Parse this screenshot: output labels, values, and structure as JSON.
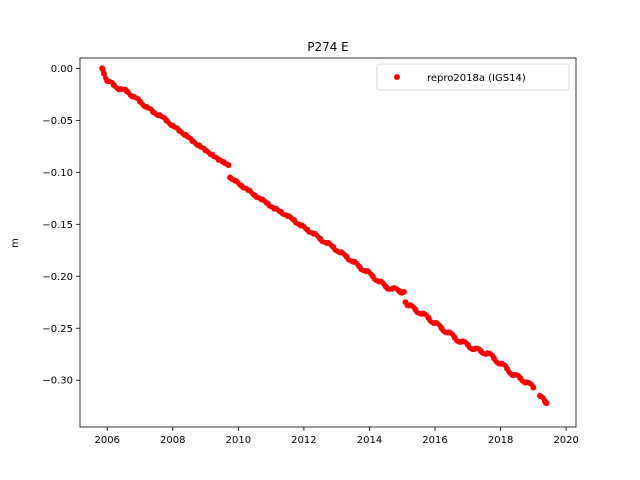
{
  "chart_data": {
    "type": "scatter",
    "title": "P274 E",
    "xlabel": "",
    "ylabel": "m",
    "xlim": [
      2005.17,
      2020.3
    ],
    "ylim": [
      -0.345,
      0.01
    ],
    "x_ticks": [
      2006,
      2008,
      2010,
      2012,
      2014,
      2016,
      2018,
      2020
    ],
    "x_tick_labels": [
      "2006",
      "2008",
      "2010",
      "2012",
      "2014",
      "2016",
      "2018",
      "2020"
    ],
    "y_ticks": [
      0.0,
      -0.05,
      -0.1,
      -0.15,
      -0.2,
      -0.25,
      -0.3
    ],
    "y_tick_labels": [
      "0.00",
      "−0.05",
      "−0.10",
      "−0.15",
      "−0.20",
      "−0.25",
      "−0.30"
    ],
    "grid": false,
    "legend_position": "top-right",
    "series": [
      {
        "name": "repro2018a (IGS14)",
        "color": "#ff0000",
        "marker": "dot",
        "x": [
          2005.85,
          2005.9,
          2006.0,
          2006.2,
          2006.4,
          2006.6,
          2006.8,
          2007.0,
          2007.2,
          2007.4,
          2007.6,
          2007.8,
          2008.0,
          2008.2,
          2008.4,
          2008.6,
          2008.8,
          2009.0,
          2009.2,
          2009.4,
          2009.55,
          2009.7,
          2009.75,
          2009.9,
          2010.1,
          2010.3,
          2010.5,
          2010.7,
          2010.9,
          2011.1,
          2011.3,
          2011.5,
          2011.7,
          2011.9,
          2012.1,
          2012.3,
          2012.5,
          2012.7,
          2012.9,
          2013.1,
          2013.3,
          2013.5,
          2013.7,
          2013.9,
          2014.1,
          2014.3,
          2014.5,
          2014.7,
          2014.9,
          2015.05,
          2015.1,
          2015.2,
          2015.4,
          2015.6,
          2015.8,
          2016.0,
          2016.2,
          2016.4,
          2016.6,
          2016.8,
          2017.0,
          2017.2,
          2017.4,
          2017.6,
          2017.8,
          2018.0,
          2018.2,
          2018.4,
          2018.6,
          2018.8,
          2019.0,
          2019.2,
          2019.35,
          2019.4
        ],
        "y": [
          0.0,
          -0.005,
          -0.012,
          -0.016,
          -0.02,
          -0.022,
          -0.027,
          -0.032,
          -0.037,
          -0.042,
          -0.045,
          -0.05,
          -0.055,
          -0.06,
          -0.064,
          -0.07,
          -0.074,
          -0.079,
          -0.083,
          -0.088,
          -0.09,
          -0.093,
          -0.105,
          -0.108,
          -0.113,
          -0.117,
          -0.122,
          -0.126,
          -0.13,
          -0.135,
          -0.138,
          -0.142,
          -0.146,
          -0.151,
          -0.155,
          -0.159,
          -0.164,
          -0.168,
          -0.172,
          -0.177,
          -0.181,
          -0.186,
          -0.191,
          -0.195,
          -0.2,
          -0.205,
          -0.21,
          -0.212,
          -0.214,
          -0.215,
          -0.225,
          -0.228,
          -0.232,
          -0.236,
          -0.24,
          -0.245,
          -0.25,
          -0.254,
          -0.259,
          -0.263,
          -0.266,
          -0.27,
          -0.272,
          -0.274,
          -0.279,
          -0.284,
          -0.289,
          -0.295,
          -0.298,
          -0.302,
          -0.307,
          -0.315,
          -0.32,
          -0.322
        ]
      }
    ]
  }
}
